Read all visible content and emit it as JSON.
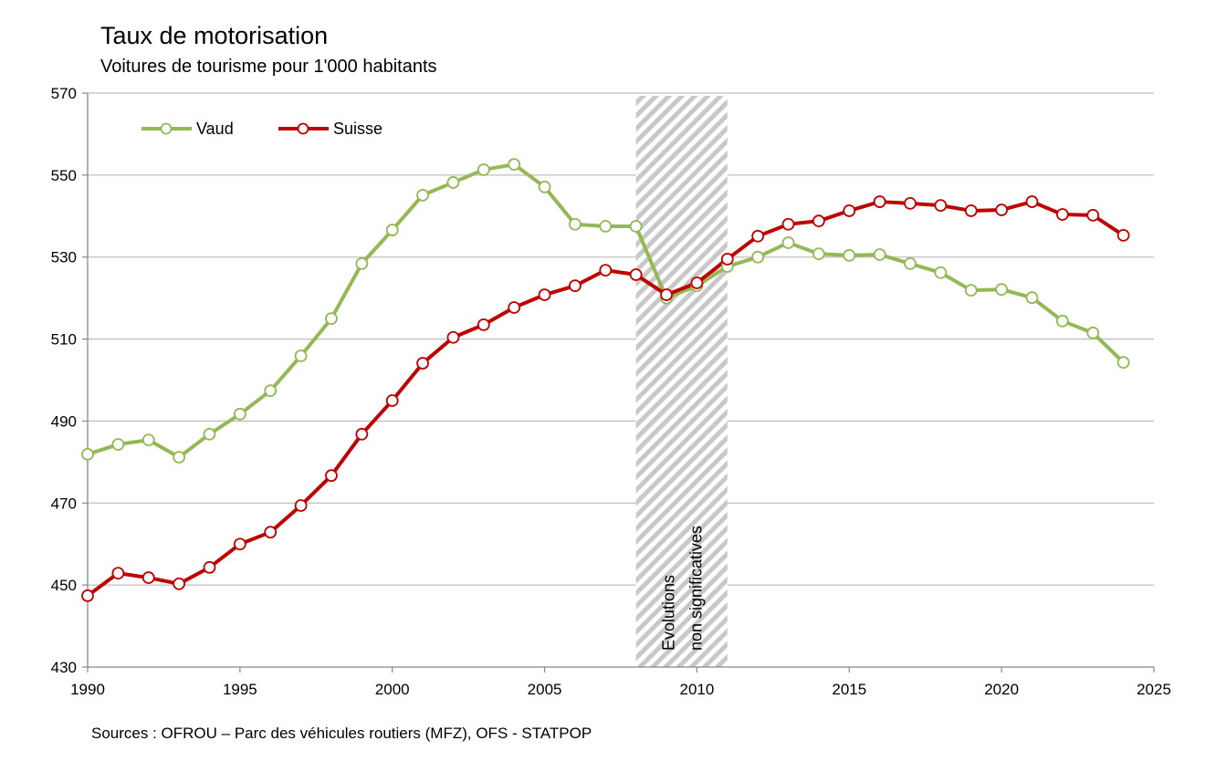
{
  "chart_data": {
    "type": "line",
    "title": "Taux de motorisation",
    "subtitle": "Voitures de tourisme pour 1'000 habitants",
    "source": "Sources : OFROU – Parc des véhicules routiers (MFZ), OFS - STATPOP",
    "xlabel": "",
    "ylabel": "",
    "xlim": [
      1990,
      2025
    ],
    "ylim": [
      430,
      570
    ],
    "xticks": [
      1990,
      1995,
      2000,
      2005,
      2010,
      2015,
      2020,
      2025
    ],
    "yticks": [
      430,
      450,
      470,
      490,
      510,
      530,
      550,
      570
    ],
    "grid": true,
    "legend_position": "top-left",
    "annotation": {
      "lines": [
        "Evolutions",
        "non significatives"
      ],
      "x_range": [
        2008,
        2011
      ]
    },
    "x": [
      1990,
      1991,
      1992,
      1993,
      1994,
      1995,
      1996,
      1997,
      1998,
      1999,
      2000,
      2001,
      2002,
      2003,
      2004,
      2005,
      2006,
      2007,
      2008,
      2009,
      2010,
      2011,
      2012,
      2013,
      2014,
      2015,
      2016,
      2017,
      2018,
      2019,
      2020,
      2021,
      2022,
      2023,
      2024
    ],
    "series": [
      {
        "name": "Vaud",
        "color": "#92b955",
        "values": [
          481.9,
          484.3,
          485.4,
          481.2,
          486.8,
          491.7,
          497.4,
          505.9,
          515.0,
          528.4,
          536.6,
          545.1,
          548.2,
          551.3,
          552.6,
          547.1,
          538.0,
          537.5,
          537.5,
          520.0,
          523.0,
          527.7,
          530.0,
          533.5,
          530.8,
          530.4,
          530.6,
          528.4,
          526.2,
          521.9,
          522.1,
          520.1,
          514.4,
          511.5,
          504.3
        ]
      },
      {
        "name": "Suisse",
        "color": "#c00000",
        "values": [
          447.4,
          452.9,
          451.8,
          450.3,
          454.3,
          460.0,
          462.9,
          469.4,
          476.7,
          486.8,
          495.0,
          504.1,
          510.4,
          513.5,
          517.7,
          520.8,
          523.0,
          526.8,
          525.7,
          520.8,
          523.7,
          529.5,
          535.1,
          538.0,
          538.8,
          541.3,
          543.5,
          543.1,
          542.6,
          541.3,
          541.5,
          543.5,
          540.4,
          540.2,
          535.3
        ]
      }
    ]
  }
}
